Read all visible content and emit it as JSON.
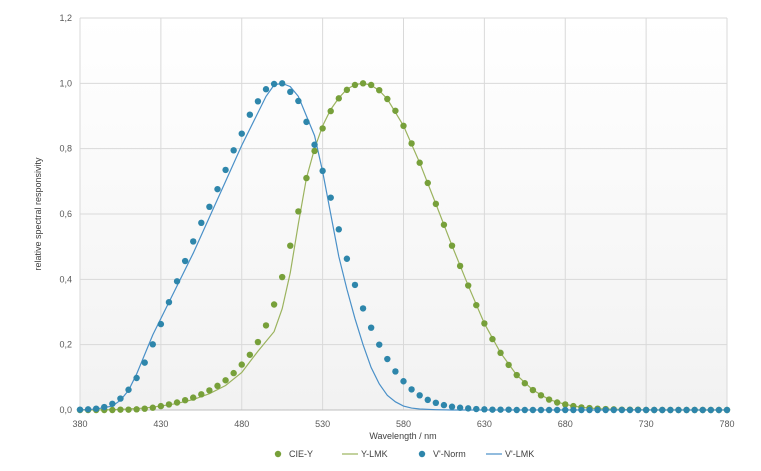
{
  "chart_data": {
    "type": "scatter",
    "xlabel": "Wavelength / nm",
    "ylabel": "relative spectral responsivity",
    "xlim": [
      380,
      780
    ],
    "ylim": [
      0,
      1.2
    ],
    "x_ticks": [
      "380",
      "430",
      "480",
      "530",
      "580",
      "630",
      "680",
      "730",
      "780"
    ],
    "y_ticks": [
      "0,0",
      "0,2",
      "0,4",
      "0,6",
      "0,8",
      "1,0",
      "1,2"
    ],
    "grid": true,
    "legend_position": "bottom",
    "series": [
      {
        "name": "CIE-Y",
        "kind": "markers",
        "color": "#77A03A",
        "x": [
          380,
          385,
          390,
          395,
          400,
          405,
          410,
          415,
          420,
          425,
          430,
          435,
          440,
          445,
          450,
          455,
          460,
          465,
          470,
          475,
          480,
          485,
          490,
          495,
          500,
          505,
          510,
          515,
          520,
          525,
          530,
          535,
          540,
          545,
          550,
          555,
          560,
          565,
          570,
          575,
          580,
          585,
          590,
          595,
          600,
          605,
          610,
          615,
          620,
          625,
          630,
          635,
          640,
          645,
          650,
          655,
          660,
          665,
          670,
          675,
          680,
          685,
          690,
          695,
          700,
          705,
          710,
          715,
          720,
          725,
          730,
          735,
          740,
          745,
          750,
          755,
          760,
          765,
          770,
          775,
          780
        ],
        "y": [
          0.0,
          0.0,
          0.0,
          0.0,
          0.0,
          0.001,
          0.001,
          0.002,
          0.004,
          0.007,
          0.012,
          0.017,
          0.023,
          0.03,
          0.038,
          0.048,
          0.06,
          0.074,
          0.091,
          0.113,
          0.139,
          0.169,
          0.208,
          0.259,
          0.323,
          0.407,
          0.503,
          0.608,
          0.71,
          0.793,
          0.862,
          0.915,
          0.954,
          0.98,
          0.995,
          1.0,
          0.995,
          0.979,
          0.952,
          0.916,
          0.87,
          0.816,
          0.757,
          0.695,
          0.631,
          0.567,
          0.503,
          0.441,
          0.381,
          0.321,
          0.265,
          0.217,
          0.175,
          0.138,
          0.107,
          0.082,
          0.061,
          0.045,
          0.032,
          0.023,
          0.017,
          0.012,
          0.008,
          0.006,
          0.004,
          0.003,
          0.002,
          0.001,
          0.001,
          0.001,
          0.0,
          0.0,
          0.0,
          0.0,
          0.0,
          0.0,
          0.0,
          0.0,
          0.0,
          0.0,
          0.0
        ]
      },
      {
        "name": "Y-LMK",
        "kind": "line",
        "color": "#9BB35E",
        "x": [
          380,
          390,
          400,
          410,
          420,
          430,
          440,
          450,
          460,
          470,
          480,
          490,
          500,
          505,
          510,
          515,
          520,
          525,
          530,
          535,
          540,
          545,
          550,
          555,
          560,
          565,
          570,
          580,
          590,
          600,
          610,
          620,
          630,
          640,
          650,
          660,
          670,
          680,
          690,
          700,
          720,
          740,
          760,
          780
        ],
        "y": [
          0.0,
          0.0,
          0.001,
          0.003,
          0.006,
          0.012,
          0.02,
          0.032,
          0.05,
          0.075,
          0.115,
          0.18,
          0.24,
          0.31,
          0.42,
          0.57,
          0.71,
          0.8,
          0.87,
          0.92,
          0.955,
          0.982,
          0.996,
          1.0,
          0.994,
          0.978,
          0.952,
          0.87,
          0.757,
          0.631,
          0.503,
          0.381,
          0.265,
          0.175,
          0.107,
          0.061,
          0.032,
          0.017,
          0.008,
          0.004,
          0.001,
          0.0,
          0.0,
          0.0
        ]
      },
      {
        "name": "V'-Norm",
        "kind": "markers",
        "color": "#2E86AB",
        "x": [
          380,
          385,
          390,
          395,
          400,
          405,
          410,
          415,
          420,
          425,
          430,
          435,
          440,
          445,
          450,
          455,
          460,
          465,
          470,
          475,
          480,
          485,
          490,
          495,
          500,
          505,
          510,
          515,
          520,
          525,
          530,
          535,
          540,
          545,
          550,
          555,
          560,
          565,
          570,
          575,
          580,
          585,
          590,
          595,
          600,
          605,
          610,
          615,
          620,
          625,
          630,
          635,
          640,
          645,
          650,
          655,
          660,
          665,
          670,
          675,
          680,
          685,
          690,
          695,
          700,
          705,
          710,
          715,
          720,
          725,
          730,
          735,
          740,
          745,
          750,
          755,
          760,
          765,
          770,
          775,
          780
        ],
        "y": [
          0.001,
          0.002,
          0.004,
          0.009,
          0.019,
          0.035,
          0.062,
          0.098,
          0.145,
          0.201,
          0.263,
          0.33,
          0.394,
          0.456,
          0.516,
          0.573,
          0.622,
          0.676,
          0.735,
          0.795,
          0.846,
          0.904,
          0.945,
          0.982,
          0.998,
          1.0,
          0.974,
          0.946,
          0.882,
          0.812,
          0.732,
          0.65,
          0.553,
          0.463,
          0.383,
          0.311,
          0.252,
          0.2,
          0.156,
          0.118,
          0.088,
          0.063,
          0.045,
          0.031,
          0.022,
          0.015,
          0.01,
          0.007,
          0.005,
          0.003,
          0.002,
          0.001,
          0.001,
          0.001,
          0.0,
          0.0,
          0.0,
          0.0,
          0.0,
          0.0,
          0.0,
          0.0,
          0.0,
          0.0,
          0.0,
          0.0,
          0.0,
          0.0,
          0.0,
          0.0,
          0.0,
          0.0,
          0.0,
          0.0,
          0.0,
          0.0,
          0.0,
          0.0,
          0.0,
          0.0,
          0.0
        ]
      },
      {
        "name": "V'-LMK",
        "kind": "line",
        "color": "#4A90C8",
        "x": [
          380,
          390,
          400,
          405,
          410,
          415,
          420,
          425,
          430,
          440,
          450,
          460,
          470,
          480,
          490,
          495,
          500,
          505,
          510,
          515,
          520,
          525,
          530,
          535,
          540,
          545,
          550,
          555,
          560,
          565,
          570,
          575,
          580,
          585,
          590,
          600,
          610,
          620,
          640,
          660,
          700,
          780
        ],
        "y": [
          0.0,
          0.003,
          0.012,
          0.03,
          0.06,
          0.11,
          0.17,
          0.23,
          0.28,
          0.38,
          0.48,
          0.59,
          0.7,
          0.81,
          0.91,
          0.96,
          0.995,
          1.0,
          0.99,
          0.96,
          0.9,
          0.84,
          0.73,
          0.6,
          0.47,
          0.37,
          0.28,
          0.2,
          0.13,
          0.08,
          0.045,
          0.025,
          0.012,
          0.006,
          0.003,
          0.001,
          0.0,
          0.0,
          0.0,
          0.0,
          0.0,
          0.0
        ]
      }
    ]
  }
}
